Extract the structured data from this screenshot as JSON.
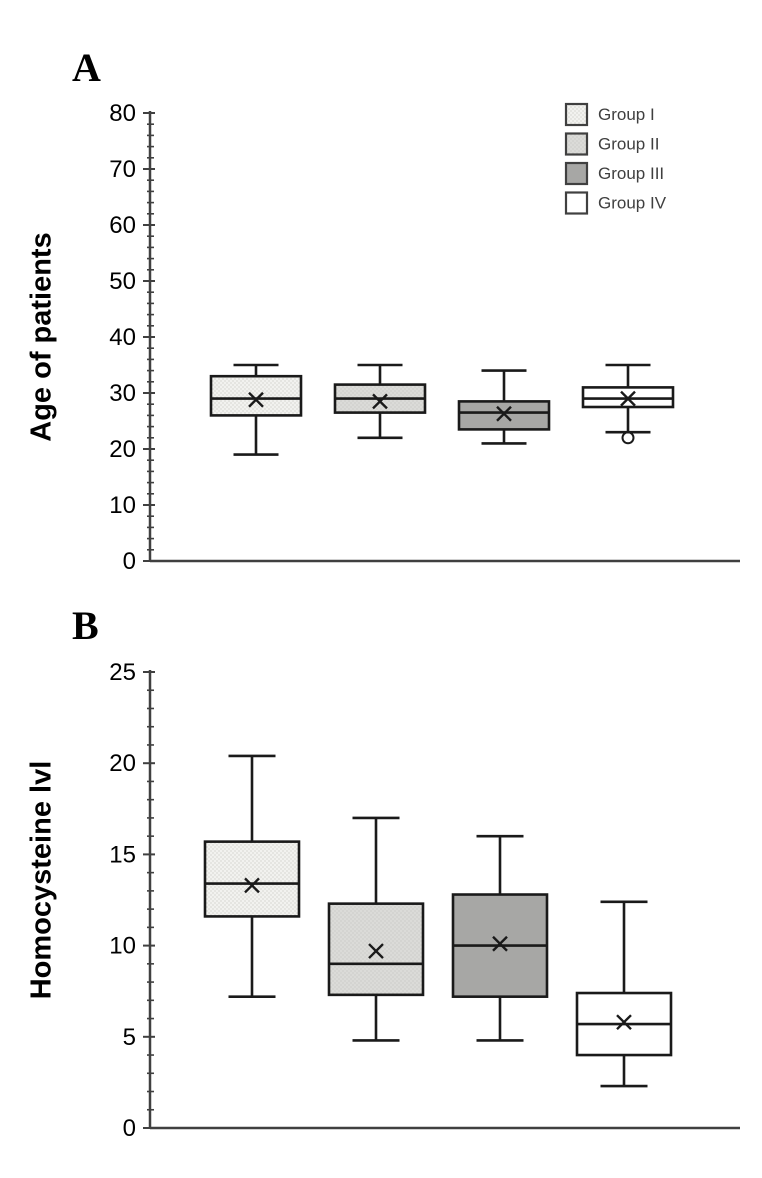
{
  "page": {
    "background": "#ffffff"
  },
  "panels": [
    {
      "label": "A",
      "ylabel": "Age of patients"
    },
    {
      "label": "B",
      "ylabel": "Homocysteine lvl"
    }
  ],
  "legend": {
    "items": [
      "Group I",
      "Group II",
      "Group III",
      "Group IV"
    ],
    "text_color": "#3f3f3f"
  },
  "style": {
    "axis_color": "#404040",
    "box_stroke": "#1a1a1a",
    "tick_label_color": "#000000",
    "group_fills": [
      "#f2f2ef",
      "#dbdbd8",
      "#a7a7a5",
      "#ffffff"
    ],
    "group_textures": [
      "dots",
      "dots",
      "none",
      "none"
    ],
    "dot_color": "#c6c6c0"
  },
  "chart_data": [
    {
      "type": "boxplot",
      "panel": "A",
      "title": "",
      "ylabel": "Age of patients",
      "ylim": [
        0,
        80
      ],
      "ytick_major": 10,
      "ytick_minor": 2,
      "legend_position": "top-right",
      "groups": [
        "Group I",
        "Group II",
        "Group III",
        "Group IV"
      ],
      "series": [
        {
          "name": "Group I",
          "whisker_low": 19,
          "q1": 26,
          "median": 29,
          "q3": 33,
          "whisker_high": 35,
          "mean": 28.8,
          "outliers": []
        },
        {
          "name": "Group II",
          "whisker_low": 22,
          "q1": 26.5,
          "median": 29,
          "q3": 31.5,
          "whisker_high": 35,
          "mean": 28.5,
          "outliers": []
        },
        {
          "name": "Group III",
          "whisker_low": 21,
          "q1": 23.5,
          "median": 26.5,
          "q3": 28.5,
          "whisker_high": 34,
          "mean": 26.3,
          "outliers": []
        },
        {
          "name": "Group IV",
          "whisker_low": 23,
          "q1": 27.5,
          "median": 29,
          "q3": 31,
          "whisker_high": 35,
          "mean": 29,
          "outliers": [
            22
          ]
        }
      ]
    },
    {
      "type": "boxplot",
      "panel": "B",
      "title": "",
      "ylabel": "Homocysteine lvl",
      "ylim": [
        0,
        25
      ],
      "ytick_major": 5,
      "ytick_minor": 1,
      "legend_position": "none",
      "groups": [
        "Group I",
        "Group II",
        "Group III",
        "Group IV"
      ],
      "series": [
        {
          "name": "Group I",
          "whisker_low": 7.2,
          "q1": 11.6,
          "median": 13.4,
          "q3": 15.7,
          "whisker_high": 20.4,
          "mean": 13.3,
          "outliers": []
        },
        {
          "name": "Group II",
          "whisker_low": 4.8,
          "q1": 7.3,
          "median": 9.0,
          "q3": 12.3,
          "whisker_high": 17.0,
          "mean": 9.7,
          "outliers": []
        },
        {
          "name": "Group III",
          "whisker_low": 4.8,
          "q1": 7.2,
          "median": 10.0,
          "q3": 12.8,
          "whisker_high": 16.0,
          "mean": 10.1,
          "outliers": []
        },
        {
          "name": "Group IV",
          "whisker_low": 2.3,
          "q1": 4.0,
          "median": 5.7,
          "q3": 7.4,
          "whisker_high": 12.4,
          "mean": 5.8,
          "outliers": []
        }
      ]
    }
  ]
}
